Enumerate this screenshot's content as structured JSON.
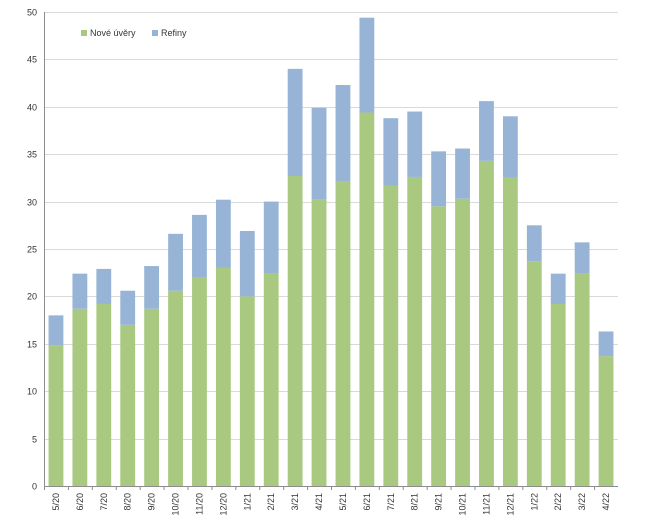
{
  "chart_data": {
    "type": "bar",
    "stacked": true,
    "title": "",
    "xlabel": "",
    "ylabel": "",
    "ylim": [
      0,
      50
    ],
    "yticks": [
      0,
      5,
      10,
      15,
      20,
      25,
      30,
      35,
      40,
      45,
      50
    ],
    "grid": true,
    "legend_position": "top-left",
    "categories": [
      "5/20",
      "6/20",
      "7/20",
      "8/20",
      "9/20",
      "10/20",
      "11/20",
      "12/20",
      "1/21",
      "2/21",
      "3/21",
      "4/21",
      "5/21",
      "6/21",
      "7/21",
      "8/21",
      "9/21",
      "10/21",
      "11/21",
      "12/21",
      "1/22",
      "2/22",
      "3/22",
      "4/22"
    ],
    "series": [
      {
        "name": "Nové úvěry",
        "color": "#a9c981",
        "values": [
          14.8,
          18.7,
          19.2,
          17.0,
          18.7,
          20.6,
          22.0,
          23.0,
          20.0,
          22.4,
          32.7,
          30.2,
          32.1,
          39.4,
          31.7,
          32.6,
          29.5,
          30.3,
          34.3,
          32.5,
          23.7,
          19.2,
          22.4,
          13.7
        ]
      },
      {
        "name": "Refiny",
        "color": "#97b4d6",
        "values": [
          3.2,
          3.7,
          3.7,
          3.6,
          4.5,
          6.0,
          6.6,
          7.2,
          6.9,
          7.6,
          11.3,
          9.7,
          10.2,
          10.0,
          7.1,
          6.9,
          5.8,
          5.3,
          6.3,
          6.5,
          3.8,
          3.2,
          3.3,
          2.6
        ]
      }
    ]
  }
}
